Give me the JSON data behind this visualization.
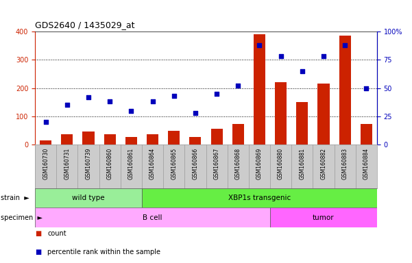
{
  "title": "GDS2640 / 1435029_at",
  "samples": [
    "GSM160730",
    "GSM160731",
    "GSM160739",
    "GSM160860",
    "GSM160861",
    "GSM160864",
    "GSM160865",
    "GSM160866",
    "GSM160867",
    "GSM160868",
    "GSM160869",
    "GSM160880",
    "GSM160881",
    "GSM160882",
    "GSM160883",
    "GSM160884"
  ],
  "counts": [
    15,
    38,
    47,
    38,
    28,
    38,
    48,
    27,
    55,
    73,
    390,
    220,
    150,
    215,
    385,
    73
  ],
  "percentile": [
    20,
    35,
    42,
    38,
    30,
    38,
    43,
    28,
    45,
    52,
    88,
    78,
    65,
    78,
    88,
    50
  ],
  "strain_groups": [
    {
      "label": "wild type",
      "start": 0,
      "end": 5
    },
    {
      "label": "XBP1s transgenic",
      "start": 5,
      "end": 16
    }
  ],
  "strain_colors": [
    "#99EE99",
    "#66EE44"
  ],
  "specimen_groups": [
    {
      "label": "B cell",
      "start": 0,
      "end": 11
    },
    {
      "label": "tumor",
      "start": 11,
      "end": 16
    }
  ],
  "specimen_colors": [
    "#FFAAFF",
    "#FF66FF"
  ],
  "bar_color": "#CC2200",
  "dot_color": "#0000BB",
  "left_axis_color": "#CC2200",
  "right_axis_color": "#0000BB",
  "ylim_left": [
    0,
    400
  ],
  "ylim_right": [
    0,
    100
  ],
  "plot_bg_color": "#FFFFFF",
  "label_bg": "#CCCCCC",
  "label_edge": "#999999"
}
